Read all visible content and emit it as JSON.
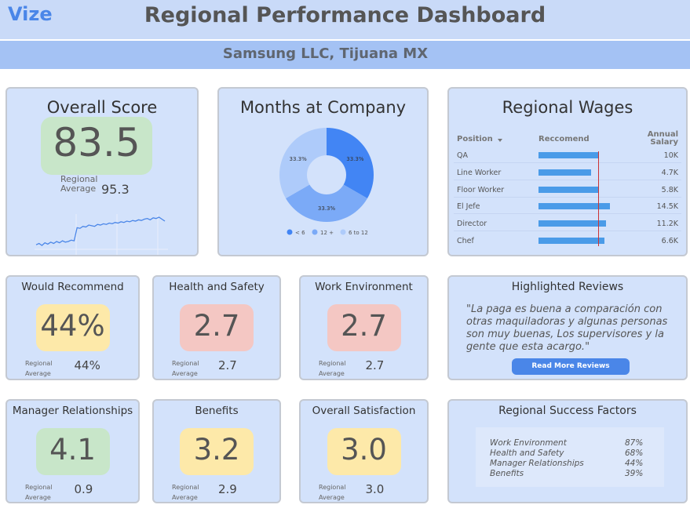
{
  "header": {
    "logo": "Vize",
    "title": "Regional Performance Dashboard",
    "subtitle": "Samsung LLC, Tijuana MX"
  },
  "overall": {
    "title": "Overall Score",
    "score": 83.5,
    "regional_label": "Regional Average",
    "regional": 95.3,
    "color": "#c8e6c9",
    "trend": [
      22,
      24,
      21,
      25,
      23,
      26,
      24,
      27,
      25,
      28,
      26,
      27,
      29,
      28,
      48,
      47,
      50,
      49,
      52,
      51,
      50,
      53,
      52,
      54,
      53,
      55,
      54,
      56,
      55,
      57,
      56,
      58,
      57,
      59,
      58,
      60,
      59,
      61,
      62,
      60,
      63,
      62,
      64,
      61,
      58
    ]
  },
  "months": {
    "title": "Months at Company",
    "categories": [
      "< 6",
      "12 +",
      "6 to 12"
    ],
    "values": [
      33.3,
      33.3,
      33.3
    ],
    "value_labels": [
      "33.3%",
      "33.3%",
      "33.3%"
    ],
    "colors": [
      "#4285f4",
      "#7baaf7",
      "#aecbfa"
    ]
  },
  "wages": {
    "title": "Regional Wages",
    "columns": [
      "Position",
      "Reccomend",
      "Annual Salary"
    ],
    "xlim": [
      0,
      100
    ],
    "reference": 57,
    "rows": [
      {
        "position": "QA",
        "recommend": 57,
        "salary": {
          "value": 10000,
          "label": "10K"
        }
      },
      {
        "position": "Line Worker",
        "recommend": 50,
        "salary": {
          "value": 4700,
          "label": "4.7K"
        }
      },
      {
        "position": "Floor Worker",
        "recommend": 57,
        "salary": {
          "value": 5800,
          "label": "5.8K"
        }
      },
      {
        "position": "El Jefe",
        "recommend": 68,
        "salary": {
          "value": 14500,
          "label": "14.5K"
        }
      },
      {
        "position": "Director",
        "recommend": 64,
        "salary": {
          "value": 11200,
          "label": "11.2K"
        }
      },
      {
        "position": "Chef",
        "recommend": 63,
        "salary": {
          "value": 6600,
          "label": "6.6K"
        }
      }
    ]
  },
  "metrics": [
    {
      "title": "Would Recommend",
      "score": {
        "value": 44,
        "label": "44%"
      },
      "regional_label": "Regional Average",
      "regional": {
        "value": 44,
        "label": "44%"
      },
      "color": "#fde9a9"
    },
    {
      "title": "Health and Safety",
      "score": 2.7,
      "regional_label": "Regional Average",
      "regional": 2.7,
      "color": "#f4c7c3"
    },
    {
      "title": "Work Environment",
      "score": 2.7,
      "regional_label": "Regional Average",
      "regional": 2.7,
      "color": "#f4c7c3"
    },
    {
      "title": "Manager Relationships",
      "score": 4.1,
      "regional_label": "Regional Average",
      "regional": 0.9,
      "color": "#c8e6c9"
    },
    {
      "title": "Benefits",
      "score": 3.2,
      "regional_label": "Regional Average",
      "regional": 2.9,
      "color": "#fde9a9"
    },
    {
      "title": "Overall Satisfaction",
      "score": {
        "value": 3,
        "label": "3.0"
      },
      "regional_label": "Regional Average",
      "regional": {
        "value": 3,
        "label": "3.0"
      },
      "color": "#fde9a9"
    }
  ],
  "reviews": {
    "title": "Highlighted Reviews",
    "quote": "\"La paga es buena a comparación con otras maquiladoras y algunas personas son muy buenas, Los supervisores y la gente que esta acargo.\"",
    "button": "Read More Reviews"
  },
  "success": {
    "title": "Regional Success Factors",
    "factors": [
      {
        "name": "Work Environment",
        "value": 87,
        "label": "87%"
      },
      {
        "name": "Health and Safety",
        "value": 68,
        "label": "68%"
      },
      {
        "name": "Manager Relationships",
        "value": 44,
        "label": "44%"
      },
      {
        "name": "Benefits",
        "value": 39,
        "label": "39%"
      }
    ]
  }
}
